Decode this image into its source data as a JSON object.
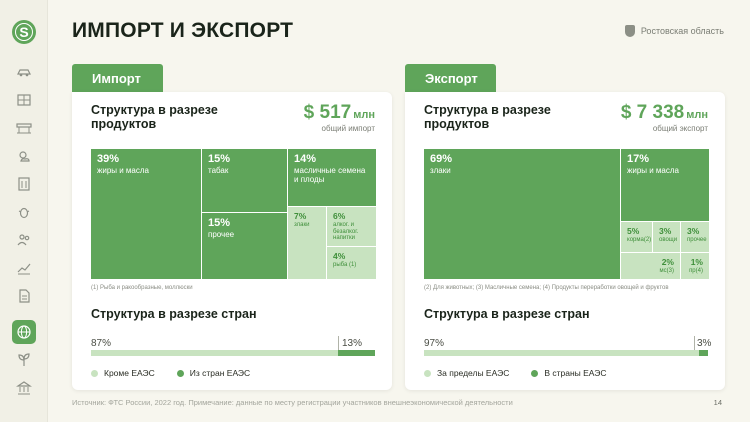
{
  "sidebar": {
    "logo_letter": "S",
    "icons": [
      "car-icon",
      "document-grid-icon",
      "barrier-icon",
      "weather-icon",
      "building-icon",
      "bug-icon",
      "people-icon",
      "chart-icon",
      "document-icon",
      "globe-icon",
      "plant-icon",
      "bank-icon"
    ],
    "active_icon": "globe-icon"
  },
  "header": {
    "title": "ИМПОРТ И ЭКСПОРТ",
    "region": "Ростовская область"
  },
  "colors": {
    "accent": "#5fa55a",
    "accent_light": "#c8e3c0"
  },
  "import": {
    "tab_label": "Импорт",
    "heading": "Структура в разрезе продуктов",
    "total_value": "$ 517",
    "total_unit": "млн",
    "total_caption": "общий импорт",
    "cells": [
      {
        "pct": "39%",
        "label": "жиры и масла"
      },
      {
        "pct": "15%",
        "label": "табак"
      },
      {
        "pct": "14%",
        "label": "масличные семена и плоды"
      },
      {
        "pct": "15%",
        "label": "прочее"
      },
      {
        "pct": "7%",
        "label": "злаки"
      },
      {
        "pct": "6%",
        "label": "алког. и безалког. напитки"
      },
      {
        "pct": "4%",
        "label": "рыба",
        "note": "(1)"
      }
    ],
    "footnote": "(1) Рыба и ракообразные, моллюски",
    "countries_title": "Структура в разрезе стран",
    "bar": {
      "left_pct": "87%",
      "right_pct": "13%",
      "right_share": 0.13
    },
    "legend": [
      "Кроме ЕАЭС",
      "Из стран ЕАЭС"
    ]
  },
  "export": {
    "tab_label": "Экспорт",
    "heading": "Структура в разрезе продуктов",
    "total_value": "$ 7 338",
    "total_unit": "млн",
    "total_caption": "общий экспорт",
    "cells": [
      {
        "pct": "69%",
        "label": "злаки"
      },
      {
        "pct": "17%",
        "label": "жиры и масла"
      },
      {
        "pct": "5%",
        "label": "корма",
        "note": "(2)"
      },
      {
        "pct": "3%",
        "label": "овощи"
      },
      {
        "pct": "3%",
        "label": "прочее"
      },
      {
        "pct": "2%",
        "label": "мс",
        "note": "(3)"
      },
      {
        "pct": "1%",
        "label": "пр",
        "note": "(4)"
      }
    ],
    "footnote": "(2) Для животных; (3) Масличные семена; (4) Продукты переработки овощей и фруктов",
    "countries_title": "Структура в разрезе стран",
    "bar": {
      "left_pct": "97%",
      "right_pct": "3%",
      "right_share": 0.03
    },
    "legend": [
      "За пределы ЕАЭС",
      "В страны ЕАЭС"
    ]
  },
  "footer": {
    "source": "Источник: ФТС России, 2022 год. Примечание: данные по месту регистрации участников внешнеэкономической деятельности",
    "page_number": "14"
  }
}
